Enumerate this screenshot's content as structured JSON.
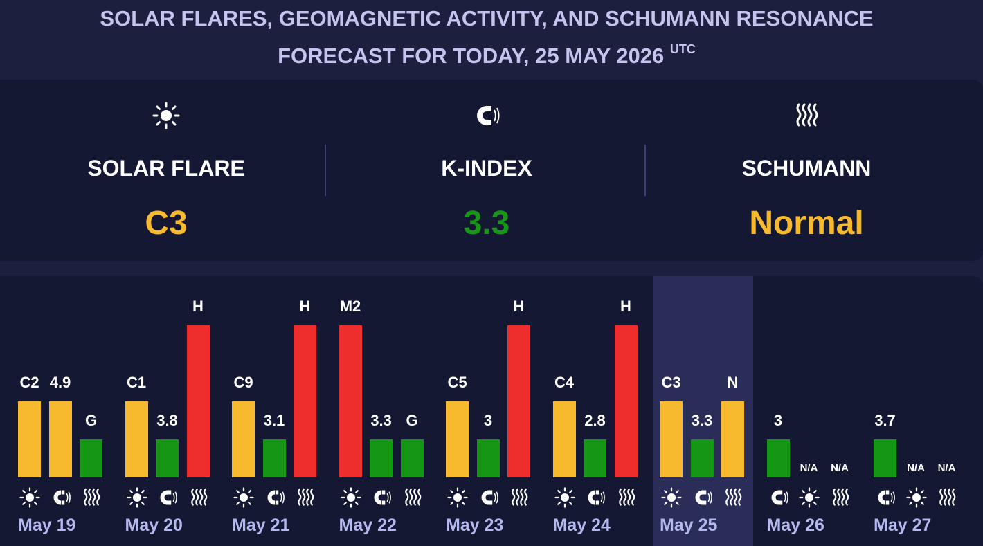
{
  "header": {
    "title_line1": "SOLAR FLARES, GEOMAGNETIC ACTIVITY, AND SCHUMANN RESONANCE",
    "title_line2": "FORECAST FOR TODAY, 25 MAY 2026",
    "timezone": "UTC"
  },
  "today": {
    "solar_flare": {
      "label": "SOLAR FLARE",
      "value": "C3",
      "color": "#f7b92e",
      "icon": "sun-icon"
    },
    "k_index": {
      "label": "K-INDEX",
      "value": "3.3",
      "color": "#189618",
      "icon": "magnet-icon"
    },
    "schumann": {
      "label": "SCHUMANN",
      "value": "Normal",
      "color": "#f7b92e",
      "icon": "waves-icon"
    }
  },
  "colors": {
    "low": "#f7b92e",
    "normal": "#159615",
    "high": "#ee2d2d"
  },
  "days": [
    {
      "date": "May 19",
      "period": "past",
      "bars": [
        {
          "metric": "flare",
          "label": "C2",
          "level": 2,
          "color": "low"
        },
        {
          "metric": "kindex",
          "label": "4.9",
          "level": 2,
          "color": "low"
        },
        {
          "metric": "schumann",
          "label": "G",
          "level": 1,
          "color": "normal"
        }
      ]
    },
    {
      "date": "May 20",
      "period": "past",
      "bars": [
        {
          "metric": "flare",
          "label": "C1",
          "level": 2,
          "color": "low"
        },
        {
          "metric": "kindex",
          "label": "3.8",
          "level": 1,
          "color": "normal"
        },
        {
          "metric": "schumann",
          "label": "H",
          "level": 4,
          "color": "high"
        }
      ]
    },
    {
      "date": "May 21",
      "period": "past",
      "bars": [
        {
          "metric": "flare",
          "label": "C9",
          "level": 2,
          "color": "low"
        },
        {
          "metric": "kindex",
          "label": "3.1",
          "level": 1,
          "color": "normal"
        },
        {
          "metric": "schumann",
          "label": "H",
          "level": 4,
          "color": "high"
        }
      ]
    },
    {
      "date": "May 22",
      "period": "past",
      "bars": [
        {
          "metric": "flare",
          "label": "M2",
          "level": 4,
          "color": "high"
        },
        {
          "metric": "kindex",
          "label": "3.3",
          "level": 1,
          "color": "normal"
        },
        {
          "metric": "schumann",
          "label": "G",
          "level": 1,
          "color": "normal"
        }
      ]
    },
    {
      "date": "May 23",
      "period": "past",
      "bars": [
        {
          "metric": "flare",
          "label": "C5",
          "level": 2,
          "color": "low"
        },
        {
          "metric": "kindex",
          "label": "3",
          "level": 1,
          "color": "normal"
        },
        {
          "metric": "schumann",
          "label": "H",
          "level": 4,
          "color": "high"
        }
      ]
    },
    {
      "date": "May 24",
      "period": "past",
      "bars": [
        {
          "metric": "flare",
          "label": "C4",
          "level": 2,
          "color": "low"
        },
        {
          "metric": "kindex",
          "label": "2.8",
          "level": 1,
          "color": "normal"
        },
        {
          "metric": "schumann",
          "label": "H",
          "level": 4,
          "color": "high"
        }
      ]
    },
    {
      "date": "May 25",
      "period": "today",
      "bars": [
        {
          "metric": "flare",
          "label": "C3",
          "level": 2,
          "color": "low"
        },
        {
          "metric": "kindex",
          "label": "3.3",
          "level": 1,
          "color": "normal"
        },
        {
          "metric": "schumann",
          "label": "N",
          "level": 2,
          "color": "low"
        }
      ]
    },
    {
      "date": "May 26",
      "period": "future",
      "bars": [
        {
          "metric": "kindex",
          "label": "3",
          "level": 1,
          "color": "normal"
        },
        {
          "metric": "flare",
          "label": "N/A",
          "level": 0,
          "color": ""
        },
        {
          "metric": "schumann",
          "label": "N/A",
          "level": 0,
          "color": ""
        }
      ]
    },
    {
      "date": "May 27",
      "period": "future",
      "bars": [
        {
          "metric": "kindex",
          "label": "3.7",
          "level": 1,
          "color": "normal"
        },
        {
          "metric": "flare",
          "label": "N/A",
          "level": 0,
          "color": ""
        },
        {
          "metric": "schumann",
          "label": "N/A",
          "level": 0,
          "color": ""
        }
      ]
    }
  ]
}
